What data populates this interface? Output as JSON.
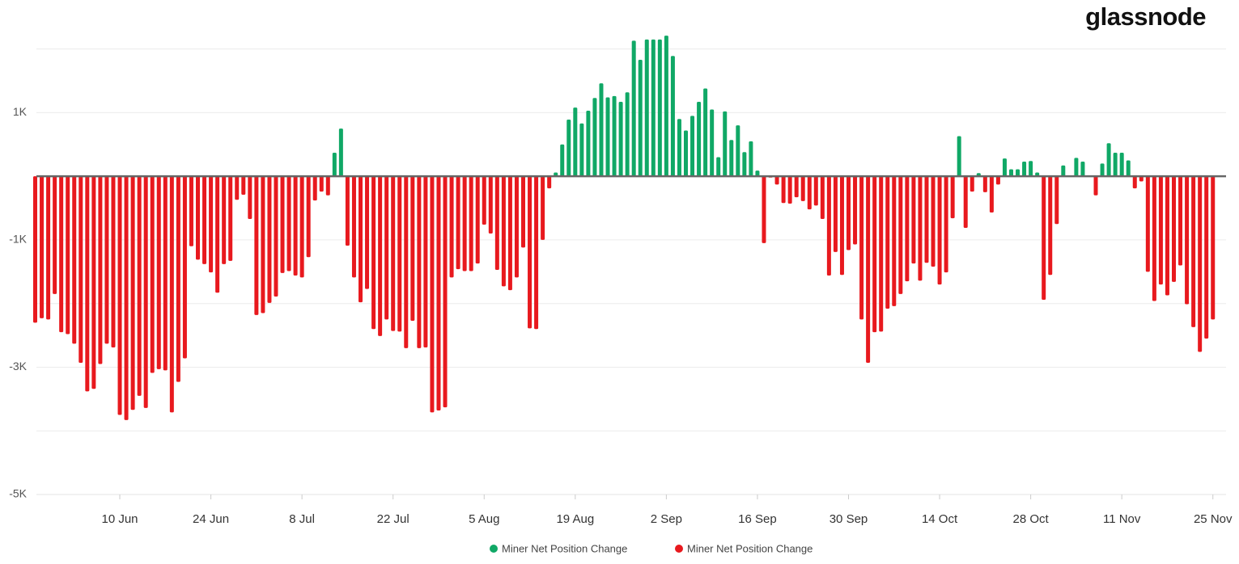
{
  "logo": "glassnode",
  "chart_data": {
    "type": "bar",
    "x": [
      "28 May",
      "29 May",
      "30 May",
      "31 May",
      "1 Jun",
      "2 Jun",
      "3 Jun",
      "4 Jun",
      "5 Jun",
      "6 Jun",
      "7 Jun",
      "8 Jun",
      "9 Jun",
      "10 Jun",
      "11 Jun",
      "12 Jun",
      "13 Jun",
      "14 Jun",
      "15 Jun",
      "16 Jun",
      "17 Jun",
      "18 Jun",
      "19 Jun",
      "20 Jun",
      "21 Jun",
      "22 Jun",
      "23 Jun",
      "24 Jun",
      "25 Jun",
      "26 Jun",
      "27 Jun",
      "28 Jun",
      "29 Jun",
      "30 Jun",
      "1 Jul",
      "2 Jul",
      "3 Jul",
      "4 Jul",
      "5 Jul",
      "6 Jul",
      "7 Jul",
      "8 Jul",
      "9 Jul",
      "10 Jul",
      "11 Jul",
      "12 Jul",
      "13 Jul",
      "14 Jul",
      "15 Jul",
      "16 Jul",
      "17 Jul",
      "18 Jul",
      "19 Jul",
      "20 Jul",
      "21 Jul",
      "22 Jul",
      "23 Jul",
      "24 Jul",
      "25 Jul",
      "26 Jul",
      "27 Jul",
      "28 Jul",
      "29 Jul",
      "30 Jul",
      "31 Jul",
      "1 Aug",
      "2 Aug",
      "3 Aug",
      "4 Aug",
      "5 Aug",
      "6 Aug",
      "7 Aug",
      "8 Aug",
      "9 Aug",
      "10 Aug",
      "11 Aug",
      "12 Aug",
      "13 Aug",
      "14 Aug",
      "15 Aug",
      "16 Aug",
      "17 Aug",
      "18 Aug",
      "19 Aug",
      "20 Aug",
      "21 Aug",
      "22 Aug",
      "23 Aug",
      "24 Aug",
      "25 Aug",
      "26 Aug",
      "27 Aug",
      "28 Aug",
      "29 Aug",
      "30 Aug",
      "31 Aug",
      "1 Sep",
      "2 Sep",
      "3 Sep",
      "4 Sep",
      "5 Sep",
      "6 Sep",
      "7 Sep",
      "8 Sep",
      "9 Sep",
      "10 Sep",
      "11 Sep",
      "12 Sep",
      "13 Sep",
      "14 Sep",
      "15 Sep",
      "16 Sep",
      "17 Sep",
      "18 Sep",
      "19 Sep",
      "20 Sep",
      "21 Sep",
      "22 Sep",
      "23 Sep",
      "24 Sep",
      "25 Sep",
      "26 Sep",
      "27 Sep",
      "28 Sep",
      "29 Sep",
      "30 Sep",
      "1 Oct",
      "2 Oct",
      "3 Oct",
      "4 Oct",
      "5 Oct",
      "6 Oct",
      "7 Oct",
      "8 Oct",
      "9 Oct",
      "10 Oct",
      "11 Oct",
      "12 Oct",
      "13 Oct",
      "14 Oct",
      "15 Oct",
      "16 Oct",
      "17 Oct",
      "18 Oct",
      "19 Oct",
      "20 Oct",
      "21 Oct",
      "22 Oct",
      "23 Oct",
      "24 Oct",
      "25 Oct",
      "26 Oct",
      "27 Oct",
      "28 Oct",
      "29 Oct",
      "30 Oct",
      "31 Oct",
      "1 Nov",
      "2 Nov",
      "3 Nov",
      "4 Nov",
      "5 Nov",
      "6 Nov",
      "7 Nov",
      "8 Nov",
      "9 Nov",
      "10 Nov",
      "11 Nov",
      "12 Nov",
      "13 Nov",
      "14 Nov",
      "15 Nov",
      "16 Nov",
      "17 Nov",
      "18 Nov",
      "19 Nov",
      "20 Nov",
      "21 Nov",
      "22 Nov",
      "23 Nov",
      "24 Nov",
      "25 Nov"
    ],
    "series": [
      {
        "name": "Miner Net Position Change",
        "color": "#10a866",
        "values": [
          null,
          null,
          null,
          null,
          null,
          null,
          null,
          null,
          null,
          null,
          null,
          null,
          null,
          null,
          null,
          null,
          null,
          null,
          null,
          null,
          null,
          null,
          null,
          null,
          null,
          null,
          null,
          null,
          null,
          null,
          null,
          null,
          null,
          null,
          null,
          null,
          null,
          null,
          null,
          null,
          null,
          null,
          null,
          null,
          null,
          null,
          370,
          750,
          null,
          null,
          null,
          null,
          null,
          null,
          null,
          null,
          null,
          null,
          null,
          null,
          null,
          null,
          null,
          null,
          null,
          null,
          null,
          null,
          null,
          null,
          null,
          null,
          null,
          null,
          null,
          null,
          null,
          null,
          null,
          null,
          60,
          500,
          890,
          1080,
          830,
          1030,
          1230,
          1460,
          1240,
          1260,
          1170,
          1320,
          2130,
          1830,
          2150,
          2150,
          2150,
          2210,
          1890,
          900,
          720,
          950,
          1170,
          1380,
          1050,
          300,
          1020,
          570,
          800,
          380,
          550,
          90,
          null,
          null,
          null,
          null,
          null,
          null,
          null,
          null,
          null,
          null,
          null,
          null,
          null,
          null,
          null,
          null,
          null,
          null,
          null,
          null,
          null,
          null,
          null,
          null,
          null,
          null,
          null,
          null,
          null,
          null,
          630,
          null,
          null,
          50,
          null,
          null,
          null,
          280,
          110,
          110,
          230,
          240,
          60,
          null,
          null,
          null,
          170,
          null,
          290,
          230,
          null,
          null,
          200,
          520,
          370,
          370,
          250,
          null,
          null,
          null,
          null,
          null,
          null,
          null,
          null,
          null,
          null,
          null,
          null,
          null
        ]
      },
      {
        "name": "Miner Net Position Change",
        "color": "#e8191e",
        "values": [
          -2300,
          -2230,
          -2250,
          -1850,
          -2450,
          -2480,
          -2630,
          -2930,
          -3380,
          -3340,
          -2950,
          -2630,
          -2690,
          -3750,
          -3830,
          -3670,
          -3450,
          -3640,
          -3090,
          -3030,
          -3050,
          -3710,
          -3230,
          -2860,
          -1100,
          -1310,
          -1380,
          -1510,
          -1830,
          -1380,
          -1330,
          -370,
          -290,
          -670,
          -2180,
          -2150,
          -1990,
          -1890,
          -1520,
          -1490,
          -1560,
          -1590,
          -1270,
          -380,
          -240,
          -300,
          null,
          null,
          -1090,
          -1590,
          -1980,
          -1770,
          -2400,
          -2510,
          -2250,
          -2430,
          -2440,
          -2700,
          -2270,
          -2700,
          -2690,
          -3710,
          -3680,
          -3630,
          -1590,
          -1460,
          -1490,
          -1490,
          -1370,
          -760,
          -900,
          -1470,
          -1730,
          -1790,
          -1590,
          -1120,
          -2390,
          -2400,
          -1000,
          -190,
          null,
          null,
          null,
          null,
          null,
          null,
          null,
          null,
          null,
          null,
          null,
          null,
          null,
          null,
          null,
          null,
          null,
          null,
          null,
          null,
          null,
          null,
          null,
          null,
          null,
          null,
          null,
          null,
          null,
          null,
          null,
          null,
          -1050,
          -20,
          -130,
          -420,
          -430,
          -330,
          -390,
          -520,
          -460,
          -670,
          -1560,
          -1190,
          -1550,
          -1160,
          -1070,
          -2250,
          -2930,
          -2450,
          -2440,
          -2080,
          -2040,
          -1850,
          -1650,
          -1370,
          -1640,
          -1360,
          -1420,
          -1700,
          -1510,
          -660,
          null,
          -810,
          -240,
          null,
          -250,
          -570,
          -130,
          null,
          null,
          null,
          null,
          null,
          null,
          -1940,
          -1550,
          -750,
          null,
          null,
          null,
          null,
          null,
          -300,
          null,
          null,
          null,
          null,
          null,
          -190,
          -80,
          -1500,
          -1960,
          -1700,
          -1870,
          -1660,
          -1400,
          -2010,
          -2370,
          -2760,
          -2550,
          -2250
        ]
      }
    ],
    "ylim": [
      -5000,
      2300
    ],
    "yticks": [
      {
        "value": 1000,
        "label": "1K"
      },
      {
        "value": -1000,
        "label": "-1K"
      },
      {
        "value": -3000,
        "label": "-3K"
      },
      {
        "value": -5000,
        "label": "-5K"
      }
    ],
    "ygrid": [
      2000,
      0,
      -2000,
      -4000
    ],
    "xticks": [
      "10 Jun",
      "24 Jun",
      "8 Jul",
      "22 Jul",
      "5 Aug",
      "19 Aug",
      "2 Sep",
      "16 Sep",
      "30 Sep",
      "14 Oct",
      "28 Oct",
      "11 Nov",
      "25 Nov"
    ],
    "grid": true,
    "legend": "bottom"
  }
}
